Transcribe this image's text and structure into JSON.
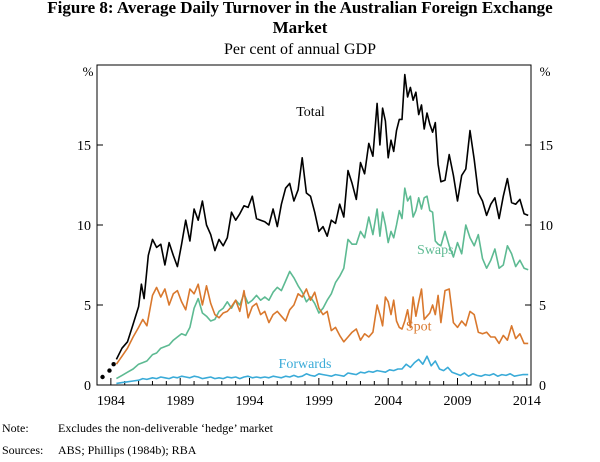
{
  "figure": {
    "title_line1": "Figure 8: Average Daily Turnover in the Australian Foreign Exchange",
    "title_line2": "Market",
    "subtitle": "Per cent of annual GDP"
  },
  "notes": [
    {
      "label": "Note:",
      "text": "Excludes the non-deliverable ‘hedge’ market"
    },
    {
      "label": "Sources:",
      "text": "ABS; Phillips (1984b); RBA"
    }
  ],
  "colors": {
    "total": "#000000",
    "swaps": "#5dba92",
    "spot": "#d9782d",
    "forwards": "#3aabd8",
    "axis": "#000000"
  },
  "chart_data": {
    "type": "line",
    "title": "Per cent of annual GDP",
    "ylabel_left": "%",
    "ylabel_right": "%",
    "xlim": [
      1983,
      2014.3
    ],
    "ylim": [
      0,
      20
    ],
    "y_ticks": [
      0,
      5,
      10,
      15
    ],
    "x_ticks": [
      1984,
      1989,
      1994,
      1999,
      2004,
      2009,
      2014
    ],
    "grid": false,
    "legend": "inline labels",
    "annotations": [
      {
        "text": "Total",
        "series": "Total"
      },
      {
        "text": "Swaps",
        "series": "Swaps"
      },
      {
        "text": "Spot",
        "series": "Spot"
      },
      {
        "text": "Forwards",
        "series": "Forwards"
      }
    ],
    "points_series": {
      "name": "Total (early estimates)",
      "x": [
        1983.4,
        1983.9,
        1984.2
      ],
      "y": [
        0.5,
        0.9,
        1.3
      ]
    },
    "series": [
      {
        "name": "Total",
        "x": [
          1984.4,
          1984.8,
          1985.2,
          1985.6,
          1986.0,
          1986.2,
          1986.4,
          1986.7,
          1987.0,
          1987.3,
          1987.6,
          1987.9,
          1988.2,
          1988.5,
          1988.8,
          1989.1,
          1989.4,
          1989.7,
          1990.0,
          1990.3,
          1990.6,
          1990.9,
          1991.2,
          1991.5,
          1991.8,
          1992.1,
          1992.4,
          1992.7,
          1993.0,
          1993.3,
          1993.6,
          1993.9,
          1994.2,
          1994.5,
          1994.8,
          1995.1,
          1995.4,
          1995.7,
          1996.0,
          1996.3,
          1996.6,
          1996.9,
          1997.2,
          1997.5,
          1997.8,
          1998.1,
          1998.4,
          1998.7,
          1999.0,
          1999.3,
          1999.6,
          1999.9,
          2000.2,
          2000.5,
          2000.8,
          2001.1,
          2001.4,
          2001.7,
          2002.0,
          2002.3,
          2002.6,
          2002.9,
          2003.2,
          2003.4,
          2003.6,
          2003.8,
          2004.0,
          2004.2,
          2004.4,
          2004.6,
          2004.8,
          2005.0,
          2005.2,
          2005.4,
          2005.6,
          2005.8,
          2006.0,
          2006.2,
          2006.4,
          2006.6,
          2006.8,
          2007.0,
          2007.2,
          2007.4,
          2007.6,
          2007.8,
          2008.1,
          2008.4,
          2008.7,
          2009.0,
          2009.3,
          2009.6,
          2009.9,
          2010.2,
          2010.5,
          2010.8,
          2011.1,
          2011.4,
          2011.7,
          2012.0,
          2012.3,
          2012.6,
          2012.9,
          2013.2,
          2013.5,
          2013.8,
          2014.1
        ],
        "values": [
          1.6,
          2.3,
          2.7,
          3.8,
          4.9,
          6.3,
          5.4,
          8.1,
          9.1,
          8.6,
          8.8,
          7.5,
          8.9,
          8.1,
          7.4,
          8.8,
          10.3,
          9.0,
          11.0,
          10.3,
          11.5,
          10.0,
          9.4,
          8.4,
          9.1,
          8.7,
          9.2,
          10.8,
          10.3,
          10.7,
          11.2,
          11.1,
          11.8,
          10.4,
          10.3,
          10.2,
          10.0,
          11.0,
          9.9,
          11.3,
          12.3,
          12.6,
          11.5,
          12.2,
          14.2,
          12.0,
          11.8,
          10.8,
          9.6,
          9.9,
          9.3,
          10.3,
          10.1,
          11.3,
          10.5,
          13.4,
          12.6,
          11.6,
          13.9,
          13.2,
          15.1,
          14.3,
          17.6,
          15.0,
          17.3,
          16.5,
          14.2,
          15.3,
          14.6,
          15.9,
          16.6,
          16.6,
          19.4,
          18.0,
          18.6,
          17.8,
          18.3,
          16.9,
          17.5,
          16.0,
          17.0,
          16.3,
          15.8,
          16.4,
          13.8,
          12.7,
          12.8,
          14.4,
          13.1,
          11.5,
          13.1,
          13.5,
          15.9,
          14.1,
          12.0,
          11.5,
          10.6,
          11.3,
          11.7,
          10.4,
          11.8,
          12.9,
          11.4,
          11.3,
          11.6,
          10.7,
          10.6
        ]
      },
      {
        "name": "Swaps",
        "x": [
          1984.4,
          1984.8,
          1985.2,
          1985.6,
          1986.0,
          1986.3,
          1986.6,
          1987.0,
          1987.3,
          1987.6,
          1987.9,
          1988.2,
          1988.5,
          1988.8,
          1989.1,
          1989.4,
          1989.7,
          1990.0,
          1990.3,
          1990.6,
          1990.9,
          1991.2,
          1991.5,
          1991.8,
          1992.1,
          1992.4,
          1992.7,
          1993.0,
          1993.3,
          1993.6,
          1993.9,
          1994.2,
          1994.5,
          1994.8,
          1995.1,
          1995.4,
          1995.7,
          1996.0,
          1996.3,
          1996.6,
          1996.9,
          1997.2,
          1997.5,
          1997.8,
          1998.1,
          1998.4,
          1998.7,
          1999.0,
          1999.3,
          1999.6,
          1999.9,
          2000.2,
          2000.5,
          2000.8,
          2001.1,
          2001.4,
          2001.7,
          2002.0,
          2002.3,
          2002.6,
          2002.9,
          2003.2,
          2003.4,
          2003.6,
          2003.8,
          2004.0,
          2004.2,
          2004.4,
          2004.6,
          2004.8,
          2005.0,
          2005.2,
          2005.4,
          2005.6,
          2005.8,
          2006.0,
          2006.2,
          2006.4,
          2006.6,
          2006.8,
          2007.0,
          2007.2,
          2007.4,
          2007.6,
          2007.8,
          2008.1,
          2008.4,
          2008.7,
          2009.0,
          2009.3,
          2009.6,
          2009.9,
          2010.2,
          2010.5,
          2010.8,
          2011.1,
          2011.4,
          2011.7,
          2012.0,
          2012.3,
          2012.6,
          2012.9,
          2013.2,
          2013.5,
          2013.8,
          2014.1
        ],
        "values": [
          0.4,
          0.6,
          0.8,
          1.0,
          1.3,
          1.4,
          1.5,
          1.9,
          2.0,
          2.3,
          2.4,
          2.5,
          2.8,
          3.0,
          3.2,
          3.1,
          3.6,
          4.8,
          5.4,
          4.5,
          4.3,
          4.0,
          4.1,
          4.6,
          4.8,
          5.2,
          4.8,
          5.3,
          5.0,
          5.7,
          5.1,
          5.3,
          5.6,
          5.3,
          5.5,
          5.3,
          5.8,
          6.1,
          5.9,
          6.5,
          7.1,
          6.7,
          6.2,
          5.8,
          5.2,
          5.5,
          5.1,
          4.5,
          4.8,
          5.3,
          5.7,
          6.4,
          6.8,
          7.3,
          9.1,
          8.8,
          8.8,
          9.6,
          9.2,
          10.5,
          9.4,
          11.0,
          9.3,
          10.8,
          10.0,
          8.9,
          9.6,
          9.2,
          10.0,
          10.9,
          10.4,
          12.3,
          11.5,
          11.8,
          10.5,
          10.9,
          11.7,
          11.0,
          11.7,
          11.8,
          10.9,
          10.8,
          9.0,
          8.8,
          8.7,
          9.6,
          8.7,
          8.0,
          8.9,
          8.2,
          10.0,
          9.2,
          8.7,
          9.4,
          7.9,
          7.3,
          7.8,
          8.5,
          7.3,
          7.5,
          8.7,
          8.2,
          7.4,
          7.8,
          7.3,
          7.2
        ]
      },
      {
        "name": "Spot",
        "x": [
          1984.4,
          1984.8,
          1985.2,
          1985.6,
          1986.0,
          1986.3,
          1986.6,
          1987.0,
          1987.3,
          1987.6,
          1987.9,
          1988.2,
          1988.5,
          1988.8,
          1989.1,
          1989.4,
          1989.7,
          1990.0,
          1990.3,
          1990.6,
          1990.9,
          1991.2,
          1991.5,
          1991.8,
          1992.1,
          1992.4,
          1992.7,
          1993.0,
          1993.3,
          1993.6,
          1993.9,
          1994.2,
          1994.5,
          1994.8,
          1995.1,
          1995.4,
          1995.7,
          1996.0,
          1996.3,
          1996.6,
          1996.9,
          1997.2,
          1997.5,
          1997.8,
          1998.1,
          1998.4,
          1998.7,
          1999.0,
          1999.3,
          1999.6,
          1999.9,
          2000.2,
          2000.5,
          2000.8,
          2001.1,
          2001.4,
          2001.7,
          2002.0,
          2002.3,
          2002.6,
          2002.9,
          2003.2,
          2003.4,
          2003.6,
          2003.8,
          2004.0,
          2004.2,
          2004.4,
          2004.6,
          2004.8,
          2005.0,
          2005.2,
          2005.4,
          2005.6,
          2005.8,
          2006.0,
          2006.2,
          2006.4,
          2006.6,
          2006.8,
          2007.0,
          2007.2,
          2007.4,
          2007.6,
          2007.8,
          2008.1,
          2008.4,
          2008.7,
          2009.0,
          2009.3,
          2009.6,
          2009.9,
          2010.2,
          2010.5,
          2010.8,
          2011.1,
          2011.4,
          2011.7,
          2012.0,
          2012.3,
          2012.6,
          2012.9,
          2013.2,
          2013.5,
          2013.8,
          2014.1
        ],
        "values": [
          1.3,
          1.8,
          2.3,
          3.0,
          3.6,
          4.1,
          3.7,
          5.6,
          6.1,
          5.5,
          6.0,
          5.0,
          5.7,
          5.9,
          5.2,
          4.7,
          6.0,
          5.7,
          6.3,
          5.0,
          6.2,
          5.1,
          4.4,
          4.2,
          4.5,
          4.6,
          4.9,
          5.3,
          4.6,
          5.9,
          4.2,
          4.9,
          5.1,
          4.4,
          4.6,
          3.9,
          4.4,
          4.6,
          4.3,
          4.0,
          4.7,
          5.0,
          5.7,
          5.5,
          6.0,
          5.3,
          5.8,
          4.8,
          4.4,
          4.6,
          3.4,
          3.6,
          3.1,
          2.7,
          3.0,
          3.3,
          3.5,
          2.8,
          3.2,
          3.0,
          3.3,
          5.0,
          4.4,
          3.7,
          5.5,
          5.2,
          4.4,
          5.3,
          4.0,
          3.6,
          3.5,
          4.0,
          4.7,
          3.6,
          5.5,
          4.3,
          5.2,
          6.0,
          4.1,
          4.3,
          4.5,
          5.0,
          4.4,
          5.6,
          3.9,
          5.9,
          6.0,
          3.9,
          3.6,
          4.0,
          3.7,
          4.6,
          4.4,
          3.3,
          3.2,
          3.3,
          3.0,
          3.0,
          2.6,
          3.1,
          2.8,
          3.7,
          2.9,
          3.2,
          2.6,
          2.6
        ]
      },
      {
        "name": "Forwards",
        "x": [
          1984.4,
          1984.8,
          1985.2,
          1985.6,
          1986.0,
          1986.3,
          1986.6,
          1987.0,
          1987.3,
          1987.6,
          1987.9,
          1988.2,
          1988.5,
          1988.8,
          1989.1,
          1989.4,
          1989.7,
          1990.0,
          1990.3,
          1990.6,
          1990.9,
          1991.2,
          1991.5,
          1991.8,
          1992.1,
          1992.4,
          1992.7,
          1993.0,
          1993.3,
          1993.6,
          1993.9,
          1994.2,
          1994.5,
          1994.8,
          1995.1,
          1995.4,
          1995.7,
          1996.0,
          1996.3,
          1996.6,
          1996.9,
          1997.2,
          1997.5,
          1997.8,
          1998.1,
          1998.4,
          1998.7,
          1999.0,
          1999.3,
          1999.6,
          1999.9,
          2000.2,
          2000.5,
          2000.8,
          2001.1,
          2001.4,
          2001.7,
          2002.0,
          2002.3,
          2002.6,
          2002.9,
          2003.2,
          2003.5,
          2003.8,
          2004.1,
          2004.4,
          2004.7,
          2005.0,
          2005.3,
          2005.6,
          2005.9,
          2006.2,
          2006.5,
          2006.8,
          2007.1,
          2007.4,
          2007.7,
          2008.0,
          2008.3,
          2008.6,
          2008.9,
          2009.2,
          2009.5,
          2009.8,
          2010.1,
          2010.4,
          2010.7,
          2011.0,
          2011.3,
          2011.6,
          2011.9,
          2012.2,
          2012.5,
          2012.8,
          2013.1,
          2013.4,
          2013.7,
          2014.1
        ],
        "values": [
          0.1,
          0.15,
          0.2,
          0.25,
          0.3,
          0.4,
          0.35,
          0.45,
          0.4,
          0.5,
          0.45,
          0.4,
          0.5,
          0.45,
          0.55,
          0.5,
          0.45,
          0.55,
          0.5,
          0.4,
          0.45,
          0.5,
          0.4,
          0.45,
          0.4,
          0.5,
          0.45,
          0.5,
          0.4,
          0.5,
          0.55,
          0.45,
          0.5,
          0.45,
          0.5,
          0.45,
          0.55,
          0.5,
          0.45,
          0.55,
          0.5,
          0.6,
          0.5,
          0.55,
          0.7,
          0.6,
          0.55,
          0.7,
          0.65,
          0.6,
          0.55,
          0.65,
          0.6,
          0.55,
          0.75,
          0.7,
          0.65,
          0.8,
          0.75,
          0.85,
          0.8,
          0.9,
          0.85,
          0.8,
          0.95,
          0.9,
          1.0,
          1.0,
          1.3,
          1.1,
          1.4,
          1.6,
          1.3,
          1.8,
          1.2,
          1.5,
          1.0,
          0.9,
          1.1,
          0.8,
          0.7,
          0.6,
          0.75,
          0.55,
          0.7,
          0.6,
          0.55,
          0.65,
          0.6,
          0.7,
          0.55,
          0.65,
          0.6,
          0.7,
          0.55,
          0.6,
          0.65,
          0.65
        ]
      }
    ]
  }
}
